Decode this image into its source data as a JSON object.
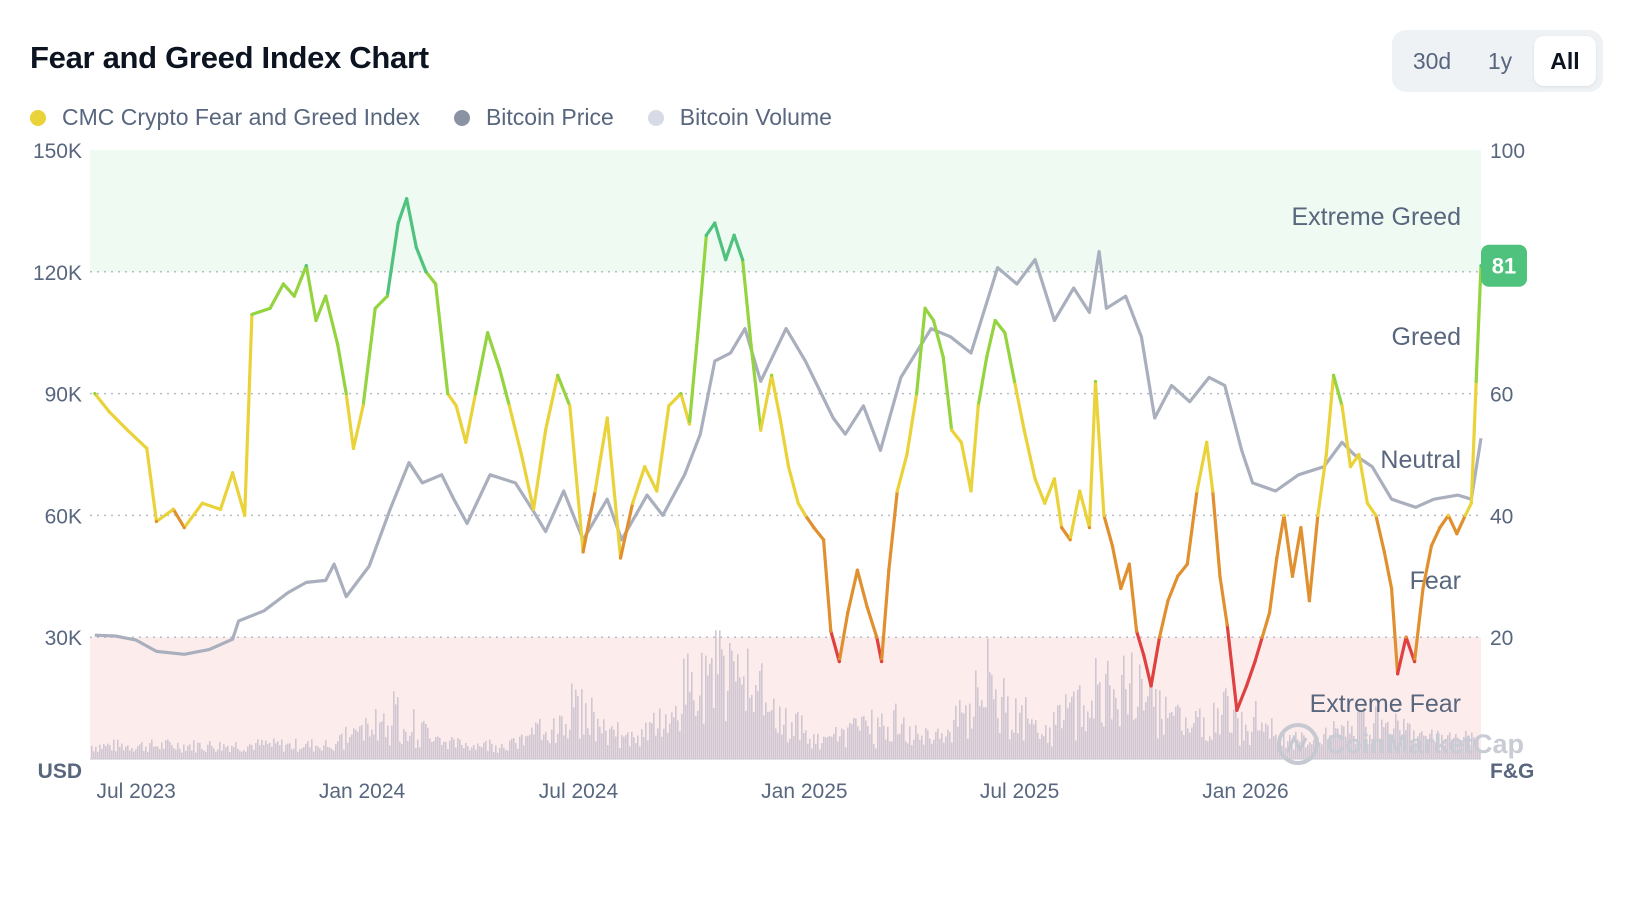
{
  "title": "Fear and Greed Index Chart",
  "tabs": [
    {
      "label": "30d",
      "active": false
    },
    {
      "label": "1y",
      "active": false
    },
    {
      "label": "All",
      "active": true
    }
  ],
  "legend": [
    {
      "label": "CMC Crypto Fear and Greed Index",
      "color": "#ead33a"
    },
    {
      "label": "Bitcoin Price",
      "color": "#8a92a4"
    },
    {
      "label": "Bitcoin Volume",
      "color": "#d7dbe6"
    }
  ],
  "watermark": "CoinMarketCap",
  "current_badge": "81",
  "chart_data": {
    "type": "line",
    "left_axis": {
      "unit_label": "USD",
      "ticks": [
        "150K",
        "120K",
        "90K",
        "60K",
        "30K"
      ],
      "range": [
        0,
        150000
      ]
    },
    "right_axis": {
      "unit_label": "F&G",
      "ticks": [
        "100",
        "80",
        "60",
        "40",
        "20"
      ],
      "range": [
        0,
        100
      ]
    },
    "x_ticks": [
      "Jul 2023",
      "Jan 2024",
      "Jul 2024",
      "Jan 2025",
      "Jul 2025",
      "Jan 2026"
    ],
    "bands": [
      {
        "label": "Extreme Greed",
        "from": 80,
        "to": 100,
        "color": "#effaf3"
      },
      {
        "label": "Greed",
        "from": 60,
        "to": 80,
        "color": "#ffffff"
      },
      {
        "label": "Neutral",
        "from": 40,
        "to": 60,
        "color": "#ffffff"
      },
      {
        "label": "Fear",
        "from": 20,
        "to": 40,
        "color": "#ffffff"
      },
      {
        "label": "Extreme Fear",
        "from": 0,
        "to": 20,
        "color": "#fcecec"
      }
    ],
    "zone_colors": {
      "extreme_greed": "#4fc27d",
      "greed": "#93d43f",
      "neutral": "#ead33a",
      "fear": "#e1902f",
      "extreme_fear": "#df4141"
    },
    "series": [
      {
        "name": "CMC Crypto Fear and Greed Index",
        "axis": "right",
        "points": [
          [
            "2023-06-28",
            60
          ],
          [
            "2023-07-10",
            57
          ],
          [
            "2023-07-25",
            54
          ],
          [
            "2023-08-10",
            51
          ],
          [
            "2023-08-18",
            39
          ],
          [
            "2023-09-01",
            41
          ],
          [
            "2023-09-10",
            38
          ],
          [
            "2023-09-25",
            42
          ],
          [
            "2023-10-10",
            41
          ],
          [
            "2023-10-20",
            47
          ],
          [
            "2023-10-30",
            40
          ],
          [
            "2023-11-05",
            73
          ],
          [
            "2023-11-20",
            74
          ],
          [
            "2023-12-01",
            78
          ],
          [
            "2023-12-10",
            76
          ],
          [
            "2023-12-20",
            81
          ],
          [
            "2023-12-28",
            72
          ],
          [
            "2024-01-05",
            76
          ],
          [
            "2024-01-15",
            68
          ],
          [
            "2024-01-22",
            60
          ],
          [
            "2024-01-28",
            51
          ],
          [
            "2024-02-05",
            58
          ],
          [
            "2024-02-15",
            74
          ],
          [
            "2024-02-25",
            76
          ],
          [
            "2024-03-05",
            88
          ],
          [
            "2024-03-12",
            92
          ],
          [
            "2024-03-20",
            84
          ],
          [
            "2024-03-28",
            80
          ],
          [
            "2024-04-05",
            78
          ],
          [
            "2024-04-15",
            60
          ],
          [
            "2024-04-22",
            58
          ],
          [
            "2024-04-30",
            52
          ],
          [
            "2024-05-08",
            60
          ],
          [
            "2024-05-18",
            70
          ],
          [
            "2024-05-28",
            64
          ],
          [
            "2024-06-05",
            58
          ],
          [
            "2024-06-15",
            50
          ],
          [
            "2024-06-25",
            41
          ],
          [
            "2024-07-05",
            54
          ],
          [
            "2024-07-15",
            63
          ],
          [
            "2024-07-25",
            58
          ],
          [
            "2024-08-05",
            34
          ],
          [
            "2024-08-15",
            44
          ],
          [
            "2024-08-25",
            56
          ],
          [
            "2024-09-05",
            33
          ],
          [
            "2024-09-15",
            42
          ],
          [
            "2024-09-25",
            48
          ],
          [
            "2024-10-05",
            44
          ],
          [
            "2024-10-15",
            58
          ],
          [
            "2024-10-25",
            60
          ],
          [
            "2024-11-01",
            55
          ],
          [
            "2024-11-08",
            70
          ],
          [
            "2024-11-15",
            86
          ],
          [
            "2024-11-22",
            88
          ],
          [
            "2024-12-01",
            82
          ],
          [
            "2024-12-08",
            86
          ],
          [
            "2024-12-15",
            82
          ],
          [
            "2024-12-22",
            68
          ],
          [
            "2024-12-30",
            54
          ],
          [
            "2025-01-08",
            63
          ],
          [
            "2025-01-15",
            56
          ],
          [
            "2025-01-22",
            48
          ],
          [
            "2025-01-30",
            42
          ],
          [
            "2025-02-05",
            40
          ],
          [
            "2025-02-12",
            38
          ],
          [
            "2025-02-20",
            36
          ],
          [
            "2025-02-26",
            21
          ],
          [
            "2025-03-05",
            16
          ],
          [
            "2025-03-12",
            24
          ],
          [
            "2025-03-20",
            31
          ],
          [
            "2025-03-28",
            25
          ],
          [
            "2025-04-05",
            20
          ],
          [
            "2025-04-09",
            16
          ],
          [
            "2025-04-15",
            31
          ],
          [
            "2025-04-22",
            44
          ],
          [
            "2025-04-30",
            50
          ],
          [
            "2025-05-08",
            60
          ],
          [
            "2025-05-15",
            74
          ],
          [
            "2025-05-22",
            72
          ],
          [
            "2025-05-30",
            66
          ],
          [
            "2025-06-06",
            54
          ],
          [
            "2025-06-14",
            52
          ],
          [
            "2025-06-22",
            44
          ],
          [
            "2025-06-28",
            58
          ],
          [
            "2025-07-05",
            66
          ],
          [
            "2025-07-12",
            72
          ],
          [
            "2025-07-20",
            70
          ],
          [
            "2025-07-28",
            62
          ],
          [
            "2025-08-05",
            54
          ],
          [
            "2025-08-14",
            46
          ],
          [
            "2025-08-22",
            42
          ],
          [
            "2025-08-30",
            46
          ],
          [
            "2025-09-05",
            38
          ],
          [
            "2025-09-12",
            36
          ],
          [
            "2025-09-20",
            44
          ],
          [
            "2025-09-28",
            38
          ],
          [
            "2025-10-03",
            62
          ],
          [
            "2025-10-10",
            40
          ],
          [
            "2025-10-17",
            35
          ],
          [
            "2025-10-24",
            28
          ],
          [
            "2025-10-31",
            32
          ],
          [
            "2025-11-06",
            21
          ],
          [
            "2025-11-12",
            17
          ],
          [
            "2025-11-18",
            12
          ],
          [
            "2025-11-25",
            20
          ],
          [
            "2025-12-02",
            26
          ],
          [
            "2025-12-10",
            30
          ],
          [
            "2025-12-18",
            32
          ],
          [
            "2025-12-26",
            44
          ],
          [
            "2026-01-03",
            52
          ],
          [
            "2026-01-08",
            44
          ],
          [
            "2026-01-14",
            30
          ],
          [
            "2026-01-20",
            22
          ],
          [
            "2026-01-28",
            8
          ],
          [
            "2026-02-05",
            12
          ],
          [
            "2026-02-12",
            16
          ],
          [
            "2026-02-18",
            20
          ],
          [
            "2026-02-24",
            24
          ],
          [
            "2026-03-02",
            33
          ],
          [
            "2026-03-08",
            40
          ],
          [
            "2026-03-15",
            30
          ],
          [
            "2026-03-22",
            38
          ],
          [
            "2026-03-29",
            26
          ],
          [
            "2026-04-05",
            40
          ],
          [
            "2026-04-12",
            50
          ],
          [
            "2026-04-18",
            63
          ],
          [
            "2026-04-25",
            58
          ],
          [
            "2026-05-02",
            48
          ],
          [
            "2026-05-09",
            50
          ],
          [
            "2026-05-16",
            42
          ],
          [
            "2026-05-23",
            40
          ],
          [
            "2026-05-30",
            34
          ],
          [
            "2026-06-05",
            28
          ],
          [
            "2026-06-10",
            14
          ],
          [
            "2026-06-17",
            20
          ],
          [
            "2026-06-24",
            16
          ],
          [
            "2026-07-01",
            28
          ],
          [
            "2026-07-08",
            35
          ],
          [
            "2026-07-15",
            38
          ],
          [
            "2026-07-22",
            40
          ],
          [
            "2026-07-29",
            37
          ],
          [
            "2026-08-05",
            40
          ],
          [
            "2026-08-10",
            42
          ],
          [
            "2026-08-14",
            62
          ],
          [
            "2026-08-18",
            81
          ]
        ]
      },
      {
        "name": "Bitcoin Price",
        "axis": "left",
        "points": [
          [
            "2023-06-28",
            30500
          ],
          [
            "2023-07-15",
            30300
          ],
          [
            "2023-08-01",
            29300
          ],
          [
            "2023-08-18",
            26500
          ],
          [
            "2023-09-10",
            25800
          ],
          [
            "2023-10-01",
            27000
          ],
          [
            "2023-10-20",
            29500
          ],
          [
            "2023-10-25",
            34000
          ],
          [
            "2023-11-15",
            36500
          ],
          [
            "2023-12-05",
            41000
          ],
          [
            "2023-12-20",
            43500
          ],
          [
            "2024-01-05",
            44000
          ],
          [
            "2024-01-12",
            48000
          ],
          [
            "2024-01-22",
            40000
          ],
          [
            "2024-02-10",
            47500
          ],
          [
            "2024-02-28",
            62000
          ],
          [
            "2024-03-14",
            73000
          ],
          [
            "2024-03-25",
            68000
          ],
          [
            "2024-04-10",
            70000
          ],
          [
            "2024-04-20",
            64000
          ],
          [
            "2024-05-01",
            58000
          ],
          [
            "2024-05-20",
            70000
          ],
          [
            "2024-06-10",
            68000
          ],
          [
            "2024-06-25",
            61000
          ],
          [
            "2024-07-05",
            56000
          ],
          [
            "2024-07-20",
            66000
          ],
          [
            "2024-08-05",
            54000
          ],
          [
            "2024-08-25",
            64000
          ],
          [
            "2024-09-06",
            54000
          ],
          [
            "2024-09-27",
            65000
          ],
          [
            "2024-10-10",
            60000
          ],
          [
            "2024-10-28",
            70000
          ],
          [
            "2024-11-10",
            80000
          ],
          [
            "2024-11-22",
            98000
          ],
          [
            "2024-12-05",
            100000
          ],
          [
            "2024-12-17",
            106000
          ],
          [
            "2024-12-30",
            93000
          ],
          [
            "2025-01-20",
            106000
          ],
          [
            "2025-02-05",
            98000
          ],
          [
            "2025-02-28",
            84000
          ],
          [
            "2025-03-10",
            80000
          ],
          [
            "2025-03-25",
            87000
          ],
          [
            "2025-04-08",
            76000
          ],
          [
            "2025-04-25",
            94000
          ],
          [
            "2025-05-20",
            106000
          ],
          [
            "2025-06-05",
            104000
          ],
          [
            "2025-06-22",
            100000
          ],
          [
            "2025-07-14",
            121000
          ],
          [
            "2025-07-30",
            117000
          ],
          [
            "2025-08-14",
            123000
          ],
          [
            "2025-08-30",
            108000
          ],
          [
            "2025-09-15",
            116000
          ],
          [
            "2025-09-28",
            110000
          ],
          [
            "2025-10-06",
            125000
          ],
          [
            "2025-10-12",
            111000
          ],
          [
            "2025-10-28",
            114000
          ],
          [
            "2025-11-10",
            104000
          ],
          [
            "2025-11-21",
            84000
          ],
          [
            "2025-12-05",
            92000
          ],
          [
            "2025-12-20",
            88000
          ],
          [
            "2026-01-05",
            94000
          ],
          [
            "2026-01-18",
            92000
          ],
          [
            "2026-02-01",
            76000
          ],
          [
            "2026-02-10",
            68000
          ],
          [
            "2026-03-01",
            66000
          ],
          [
            "2026-03-20",
            70000
          ],
          [
            "2026-04-10",
            72000
          ],
          [
            "2026-04-25",
            78000
          ],
          [
            "2026-05-05",
            75000
          ],
          [
            "2026-05-20",
            72000
          ],
          [
            "2026-06-05",
            64000
          ],
          [
            "2026-06-25",
            62000
          ],
          [
            "2026-07-10",
            64000
          ],
          [
            "2026-07-30",
            65000
          ],
          [
            "2026-08-10",
            64000
          ],
          [
            "2026-08-18",
            79000
          ]
        ]
      }
    ]
  }
}
